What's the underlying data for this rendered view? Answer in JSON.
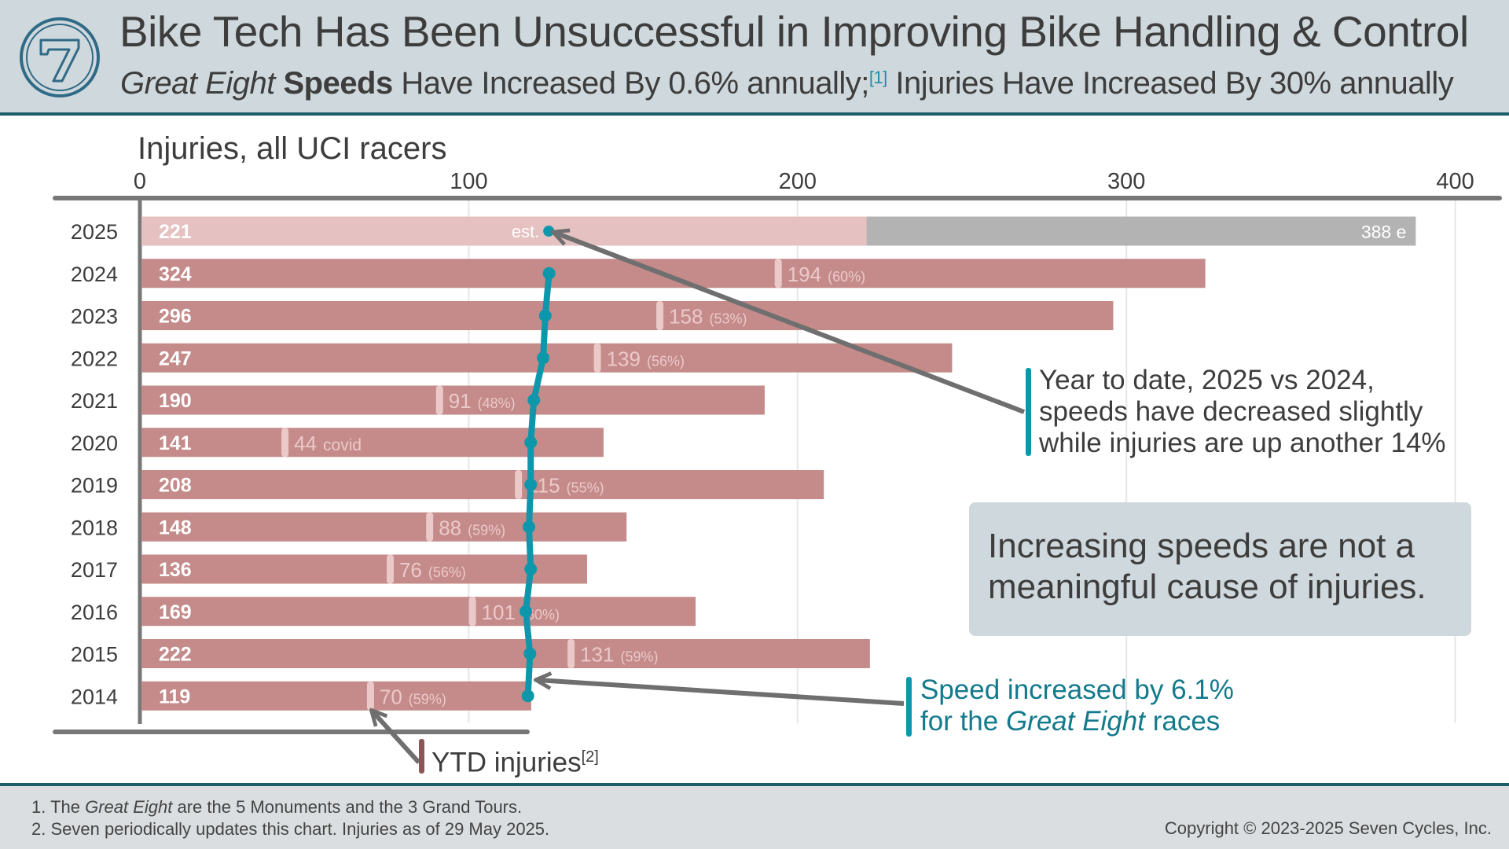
{
  "header": {
    "title": "Bike Tech Has Been Unsuccessful in Improving Bike Handling & Control",
    "subtitle_italic": "Great Eight",
    "subtitle_bold": "Speeds",
    "subtitle_rest1": " Have Increased By 0.6% annually;",
    "subtitle_ref": "[1]",
    "subtitle_rest2": " Injuries Have Increased By 30% annually",
    "logo_text": "7"
  },
  "chart_data": {
    "type": "bar",
    "title": "Injuries, all UCI racers",
    "orientation": "horizontal",
    "xlim": [
      0,
      400
    ],
    "xticks": [
      "0",
      "100",
      "200",
      "300",
      "400"
    ],
    "grid": true,
    "categories": [
      "2025",
      "2024",
      "2023",
      "2022",
      "2021",
      "2020",
      "2019",
      "2018",
      "2017",
      "2016",
      "2015",
      "2014"
    ],
    "series": [
      {
        "name": "Injuries",
        "values": [
          221,
          324,
          296,
          247,
          190,
          141,
          208,
          148,
          136,
          169,
          222,
          119
        ]
      },
      {
        "name": "YTD injuries",
        "values": [
          null,
          194,
          158,
          139,
          91,
          44,
          115,
          88,
          76,
          101,
          131,
          70
        ],
        "labels": [
          "",
          "(60%)",
          "(53%)",
          "(56%)",
          "(48%)",
          "covid",
          "(55%)",
          "(59%)",
          "(56%)",
          "(60%)",
          "(59%)",
          "(59%)"
        ]
      },
      {
        "values": [
          106.0,
          106.1,
          105.0,
          104.4,
          101.7,
          100.8,
          100.8,
          100.3,
          100.8,
          99.4,
          100.6,
          100.0
        ]
      }
    ],
    "estimate_2025": {
      "value": 388,
      "label": "388 e",
      "est_label": "est."
    },
    "colors": {
      "bar": "#c48b8a",
      "bar_current": "#e5c1c1",
      "estimate": "#b3b3b3",
      "ytd_marker": "#ecc9c9",
      "speed": "#0e97ab",
      "arrow": "#6f6f6f",
      "axis": "#777777"
    }
  },
  "callouts": {
    "ytd": {
      "line1": "Year to date, 2025 vs 2024,",
      "line2": "speeds have decreased slightly",
      "line3": "while injuries are up another 14%"
    },
    "box": {
      "line1": "Increasing speeds are not a",
      "line2": "meaningful cause of injuries."
    },
    "speed": {
      "line1": "Speed increased by 6.1%",
      "line2a": "for the ",
      "line2b": "Great Eight",
      "line2c": " races"
    },
    "ytd_label": {
      "text": "YTD injuries",
      "ref": "[2]"
    }
  },
  "footer": {
    "note1_num": "1. The ",
    "note1_italic": "Great Eight",
    "note1_rest": " are the 5 Monuments and the 3 Grand Tours.",
    "note2": "2. Seven periodically updates this chart.  Injuries as of 29 May 2025.",
    "copyright": "Copyright © 2023-2025 Seven Cycles, Inc."
  }
}
